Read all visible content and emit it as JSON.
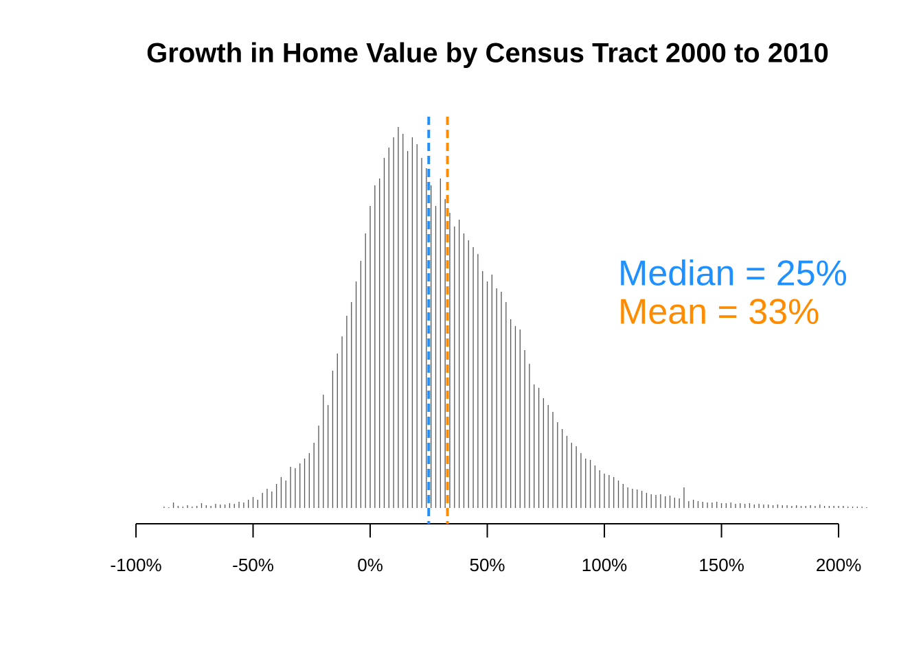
{
  "chart_data": {
    "type": "spike",
    "title": "Growth in Home Value by Census Tract 2000 to 2010",
    "color": "#555555",
    "x": [
      -88,
      -86,
      -84,
      -82,
      -80,
      -78,
      -76,
      -74,
      -72,
      -70,
      -68,
      -66,
      -64,
      -62,
      -60,
      -58,
      -56,
      -54,
      -52,
      -50,
      -48,
      -46,
      -44,
      -42,
      -40,
      -38,
      -36,
      -34,
      -32,
      -30,
      -28,
      -26,
      -24,
      -22,
      -20,
      -18,
      -16,
      -14,
      -12,
      -10,
      -8,
      -6,
      -4,
      -2,
      0,
      2,
      4,
      6,
      8,
      10,
      12,
      14,
      16,
      18,
      20,
      22,
      24,
      26,
      28,
      30,
      32,
      34,
      36,
      38,
      40,
      42,
      44,
      46,
      48,
      50,
      52,
      54,
      56,
      58,
      60,
      62,
      64,
      66,
      68,
      70,
      72,
      74,
      76,
      78,
      80,
      82,
      84,
      86,
      88,
      90,
      92,
      94,
      96,
      98,
      100,
      102,
      104,
      106,
      108,
      110,
      112,
      114,
      116,
      118,
      120,
      122,
      124,
      126,
      128,
      130,
      132,
      134,
      136,
      138,
      140,
      142,
      144,
      146,
      148,
      150,
      152,
      154,
      156,
      158,
      160,
      162,
      164,
      166,
      168,
      170,
      172,
      174,
      176,
      178,
      180,
      182,
      184,
      186,
      188,
      190,
      192,
      194,
      196,
      198,
      200,
      202,
      204,
      206,
      208,
      210,
      212
    ],
    "values": [
      2,
      1,
      8,
      3,
      2,
      4,
      2,
      3,
      7,
      4,
      3,
      6,
      5,
      5,
      7,
      6,
      9,
      8,
      12,
      16,
      12,
      22,
      28,
      24,
      35,
      45,
      40,
      60,
      58,
      65,
      72,
      80,
      95,
      120,
      165,
      150,
      200,
      225,
      250,
      280,
      300,
      330,
      360,
      400,
      440,
      470,
      480,
      510,
      525,
      540,
      555,
      545,
      520,
      540,
      530,
      510,
      495,
      470,
      440,
      480,
      450,
      430,
      410,
      420,
      400,
      390,
      380,
      370,
      345,
      330,
      340,
      320,
      315,
      300,
      275,
      265,
      260,
      230,
      210,
      180,
      175,
      160,
      150,
      140,
      125,
      115,
      105,
      95,
      90,
      80,
      72,
      70,
      62,
      55,
      50,
      48,
      45,
      40,
      35,
      30,
      28,
      27,
      25,
      22,
      20,
      19,
      20,
      17,
      18,
      15,
      14,
      30,
      10,
      12,
      10,
      9,
      8,
      8,
      9,
      7,
      7,
      8,
      6,
      7,
      6,
      7,
      5,
      6,
      5,
      5,
      4,
      5,
      4,
      4,
      3,
      4,
      3,
      3,
      4,
      3,
      5,
      3,
      3,
      3,
      3,
      3,
      2,
      2,
      2,
      2,
      1
    ],
    "xlim": [
      -100,
      212
    ],
    "ylim": [
      0,
      560
    ],
    "xticks": [
      {
        "value": -100,
        "label": "-100%"
      },
      {
        "value": -50,
        "label": "-50%"
      },
      {
        "value": 0,
        "label": "0%"
      },
      {
        "value": 50,
        "label": "50%"
      },
      {
        "value": 100,
        "label": "100%"
      },
      {
        "value": 150,
        "label": "150%"
      },
      {
        "value": 200,
        "label": "200%"
      }
    ],
    "vlines": [
      {
        "value": 25,
        "color": "#1e90ff"
      },
      {
        "value": 33,
        "color": "#ff8c00"
      }
    ],
    "annotations": [
      {
        "text": "Median = 25%",
        "color": "#1e90ff"
      },
      {
        "text": "Mean = 33%",
        "color": "#ff8c00"
      }
    ]
  }
}
